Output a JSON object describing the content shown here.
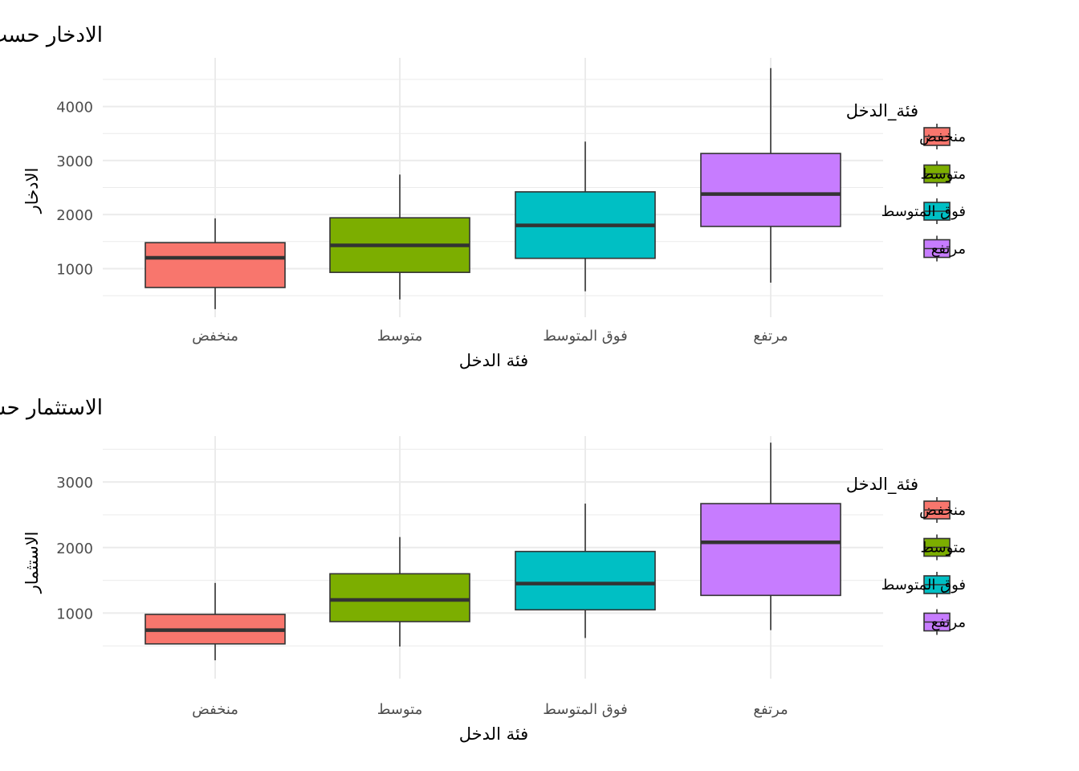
{
  "chart_data": [
    {
      "type": "box",
      "title": "الادخار حسب فئة الدخل",
      "xlabel": "فئة الدخل",
      "ylabel": "الادخار",
      "ylim": [
        100,
        4900
      ],
      "y_ticks": [
        1000,
        2000,
        3000,
        4000
      ],
      "grid": true,
      "legend": {
        "title": "فئة_الدخل",
        "placement": "right",
        "entries": [
          "منخفض",
          "متوسط",
          "فوق المتوسط",
          "مرتفع"
        ]
      },
      "categories": [
        "منخفض",
        "متوسط",
        "فوق المتوسط",
        "مرتفع"
      ],
      "colors": [
        "#F8766D",
        "#7CAE00",
        "#00BFC4",
        "#C77CFF"
      ],
      "boxes": [
        {
          "whisker_low": 250,
          "q1": 650,
          "median": 1200,
          "q3": 1480,
          "whisker_high": 1930
        },
        {
          "whisker_low": 430,
          "q1": 930,
          "median": 1430,
          "q3": 1940,
          "whisker_high": 2740
        },
        {
          "whisker_low": 580,
          "q1": 1190,
          "median": 1800,
          "q3": 2420,
          "whisker_high": 3350
        },
        {
          "whisker_low": 740,
          "q1": 1780,
          "median": 2380,
          "q3": 3130,
          "whisker_high": 4710
        }
      ]
    },
    {
      "type": "box",
      "title": "الاستثمار حسب فئة الدخل",
      "xlabel": "فئة الدخل",
      "ylabel": "الاستثمار",
      "ylim": [
        0,
        3700
      ],
      "y_ticks": [
        1000,
        2000,
        3000
      ],
      "grid": true,
      "legend": {
        "title": "فئة_الدخل",
        "placement": "right",
        "entries": [
          "منخفض",
          "متوسط",
          "فوق المتوسط",
          "مرتفع"
        ]
      },
      "categories": [
        "منخفض",
        "متوسط",
        "فوق المتوسط",
        "مرتفع"
      ],
      "colors": [
        "#F8766D",
        "#7CAE00",
        "#00BFC4",
        "#C77CFF"
      ],
      "boxes": [
        {
          "whisker_low": 280,
          "q1": 530,
          "median": 740,
          "q3": 980,
          "whisker_high": 1460
        },
        {
          "whisker_low": 490,
          "q1": 870,
          "median": 1200,
          "q3": 1600,
          "whisker_high": 2160
        },
        {
          "whisker_low": 620,
          "q1": 1050,
          "median": 1450,
          "q3": 1940,
          "whisker_high": 2670
        },
        {
          "whisker_low": 740,
          "q1": 1270,
          "median": 2080,
          "q3": 2670,
          "whisker_high": 3600
        }
      ]
    }
  ]
}
